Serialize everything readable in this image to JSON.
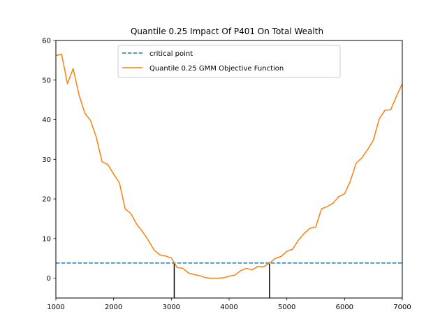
{
  "chart_data": {
    "type": "line",
    "title": "Quantile 0.25 Impact Of P401 On Total Wealth",
    "xlabel": "",
    "ylabel": "",
    "xlim": [
      1000,
      7000
    ],
    "ylim": [
      -5,
      60
    ],
    "xticks": [
      1000,
      2000,
      3000,
      4000,
      5000,
      6000,
      7000
    ],
    "yticks": [
      0,
      10,
      20,
      30,
      40,
      50,
      60
    ],
    "grid": false,
    "legend_position": "top-center",
    "colors": {
      "critical": "#1f77b4",
      "objective": "#ff7f0e",
      "vlines": "#000000"
    },
    "series": [
      {
        "name": "critical point",
        "style": "dashed",
        "x": [
          1000,
          7000
        ],
        "y": [
          3.84,
          3.84
        ]
      },
      {
        "name": "Quantile 0.25 GMM Objective Function",
        "style": "solid",
        "x": [
          1000,
          1100,
          1200,
          1300,
          1400,
          1500,
          1600,
          1700,
          1800,
          1900,
          2000,
          2100,
          2200,
          2300,
          2400,
          2500,
          2600,
          2700,
          2800,
          2900,
          3000,
          3100,
          3200,
          3300,
          3400,
          3500,
          3600,
          3700,
          3800,
          3900,
          4000,
          4100,
          4200,
          4300,
          4400,
          4500,
          4600,
          4700,
          4800,
          4900,
          5000,
          5100,
          5200,
          5300,
          5400,
          5500,
          5600,
          5700,
          5800,
          5900,
          6000,
          6100,
          6200,
          6300,
          6400,
          6500,
          6600,
          6700,
          6800,
          6900,
          7000
        ],
        "y": [
          56.2,
          56.5,
          49.1,
          52.9,
          46.3,
          41.7,
          39.8,
          35.6,
          29.4,
          28.7,
          26.3,
          24.1,
          17.5,
          16.3,
          13.6,
          11.8,
          9.6,
          7.1,
          5.9,
          5.6,
          5.1,
          2.7,
          2.5,
          1.3,
          0.9,
          0.6,
          0.1,
          0.0,
          0.0,
          0.1,
          0.5,
          0.8,
          1.9,
          2.5,
          2.1,
          3.0,
          2.9,
          3.8,
          5.0,
          5.5,
          6.8,
          7.3,
          9.6,
          11.3,
          12.6,
          12.9,
          17.5,
          18.1,
          18.9,
          20.6,
          21.3,
          24.5,
          29.0,
          30.4,
          32.5,
          34.9,
          40.2,
          42.4,
          42.5,
          46.0,
          49.1
        ]
      }
    ],
    "vlines": [
      {
        "x": 3050,
        "y_top": 3.84
      },
      {
        "x": 4700,
        "y_top": 3.84
      }
    ]
  }
}
